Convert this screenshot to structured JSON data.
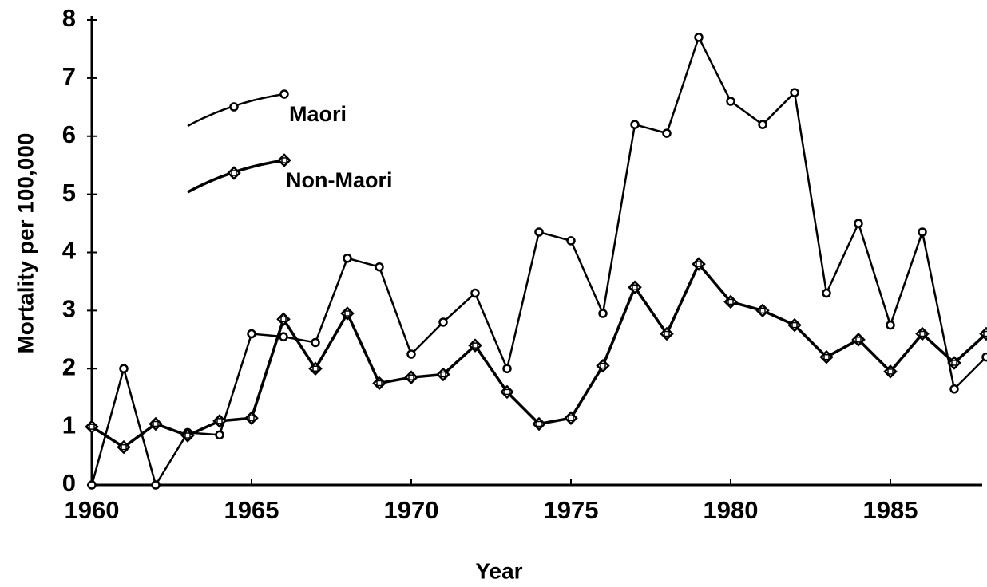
{
  "chart_data": {
    "type": "line",
    "xlabel": "Year",
    "ylabel": "Mortality per 100,000",
    "x": [
      1960,
      1961,
      1962,
      1963,
      1964,
      1965,
      1966,
      1967,
      1968,
      1969,
      1970,
      1971,
      1972,
      1973,
      1974,
      1975,
      1976,
      1977,
      1978,
      1979,
      1980,
      1981,
      1982,
      1983,
      1984,
      1985,
      1986,
      1987,
      1988
    ],
    "series": [
      {
        "name": "Maori",
        "color": "#000000",
        "marker": "circle",
        "values": [
          0,
          2.0,
          0,
          0.9,
          0.86,
          2.6,
          2.55,
          2.45,
          3.9,
          3.75,
          2.25,
          2.8,
          3.3,
          2.0,
          4.35,
          4.2,
          2.95,
          6.2,
          6.05,
          7.7,
          6.6,
          6.2,
          6.75,
          3.3,
          4.5,
          2.75,
          4.35,
          1.65,
          2.2
        ]
      },
      {
        "name": "Non-Maori",
        "color": "#000000",
        "marker": "diamond",
        "values": [
          1.0,
          0.65,
          1.05,
          0.85,
          1.1,
          1.15,
          2.85,
          2.0,
          2.95,
          1.75,
          1.85,
          1.9,
          2.4,
          1.6,
          1.05,
          1.15,
          2.05,
          3.4,
          2.6,
          3.8,
          3.15,
          3.0,
          2.75,
          2.2,
          2.5,
          1.95,
          2.6,
          2.1,
          2.6
        ]
      }
    ],
    "xlim": [
      1960,
      1988
    ],
    "xticks": [
      1960,
      1965,
      1970,
      1975,
      1980,
      1985
    ],
    "ylim": [
      0,
      8
    ],
    "yticks": [
      0,
      1,
      2,
      3,
      4,
      5,
      6,
      7,
      8
    ],
    "grid": false,
    "legend": "upper left"
  }
}
